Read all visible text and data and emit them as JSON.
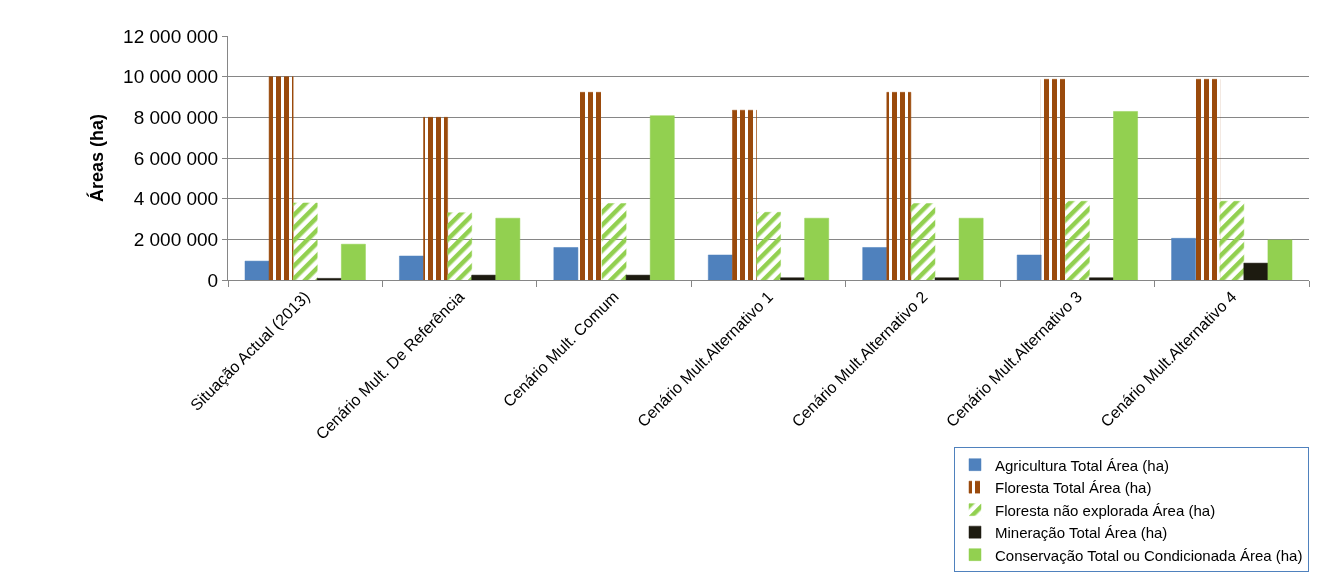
{
  "chart_data": {
    "type": "bar",
    "categories": [
      "Situação Actual (2013)",
      "Cenário Mult. De Referência",
      "Cenário Mult. Comum",
      "Cenário Mult.Alternativo 1",
      "Cenário Mult.Alternativo 2",
      "Cenário Mult.Alternativo 3",
      "Cenário Mult.Alternativo 4"
    ],
    "series": [
      {
        "name": "Agricultura Total Área (ha)",
        "color": "#4f81bd",
        "values": [
          930000,
          1180000,
          1600000,
          1230000,
          1600000,
          1230000,
          2050000
        ]
      },
      {
        "name": "Floresta Total Área (ha)",
        "color": "#9a4a0c",
        "values": [
          10000000,
          8000000,
          9230000,
          8350000,
          9230000,
          9870000,
          9870000
        ]
      },
      {
        "name": "Floresta não explorada Área (ha)",
        "color": "#92d050",
        "values": [
          3790000,
          3310000,
          3760000,
          3330000,
          3760000,
          3870000,
          3870000
        ]
      },
      {
        "name": "Mineração Total Área (ha)",
        "color": "#1d1b10",
        "values": [
          80000,
          240000,
          240000,
          110000,
          110000,
          110000,
          830000
        ]
      },
      {
        "name": "Conservação Total ou Condicionada Área (ha)",
        "color": "#92d050",
        "values": [
          1760000,
          3040000,
          8080000,
          3040000,
          3040000,
          8290000,
          1970000
        ]
      }
    ],
    "ylabel": "Áreas (ha)",
    "ylim": [
      0,
      12000000
    ],
    "yticks": [
      0,
      {
        "value": 2000000,
        "label": "2 000 000"
      },
      {
        "value": 4000000,
        "label": "4 000 000"
      },
      {
        "value": 6000000,
        "label": "6 000 000"
      },
      {
        "value": 8000000,
        "label": "8 000 000"
      },
      {
        "value": 10000000,
        "label": "10 000 000"
      },
      {
        "value": 12000000,
        "label": "12 000 000"
      }
    ],
    "grid": "y",
    "legend": "bottom right"
  }
}
